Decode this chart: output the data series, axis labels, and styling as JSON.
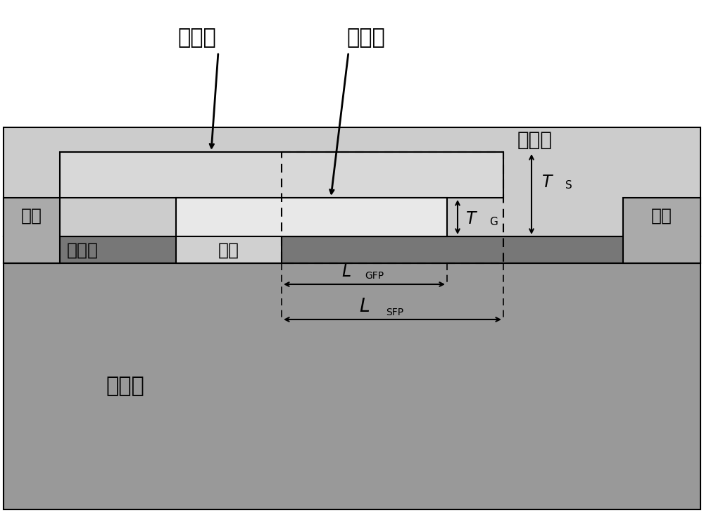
{
  "fig_width": 10.0,
  "fig_height": 7.29,
  "dpi": 100,
  "bg_color": "#ffffff",
  "colors": {
    "buffer_layer": "#999999",
    "barrier_layer": "#777777",
    "passivation_layer": "#cccccc",
    "source_field_plate": "#d8d8d8",
    "gate_field_plate": "#e8e8e8",
    "gate": "#d0d0d0",
    "source": "#aaaaaa",
    "drain": "#aaaaaa",
    "outline": "#000000"
  },
  "labels": {
    "source_fp": "源场板",
    "gate_fp": "栊场板",
    "passivation": "钝化层",
    "source": "源极",
    "drain": "漏极",
    "gate": "栊极",
    "barrier": "势垒层",
    "buffer": "缓冲层",
    "T_S": "T",
    "T_S_sub": "S",
    "T_G": "T",
    "T_G_sub": "G",
    "L_GFP": "L",
    "L_GFP_sub": "GFP",
    "L_SFP": "L",
    "L_SFP_sub": "SFP"
  }
}
